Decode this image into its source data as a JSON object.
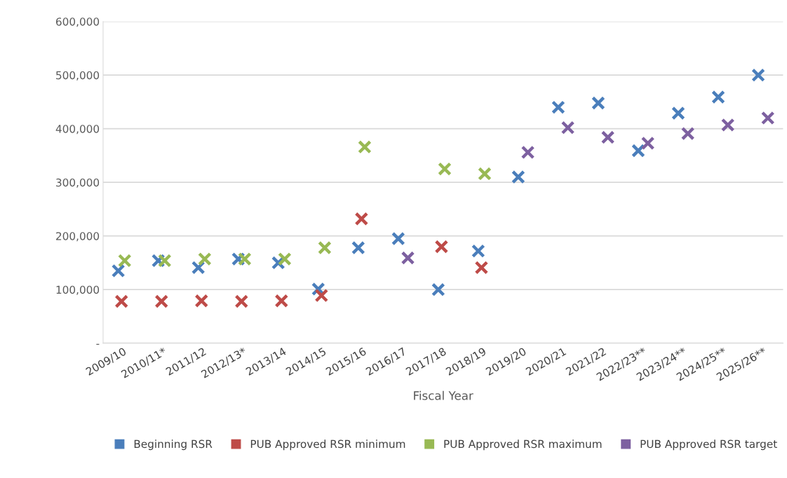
{
  "chart_data": {
    "type": "scatter",
    "xlabel": "Fiscal Year",
    "categories": [
      "2009/10",
      "2010/11*",
      "2011/12",
      "2012/13*",
      "2013/14",
      "2014/15",
      "2015/16",
      "2016/17",
      "2017/18",
      "2018/19",
      "2019/20",
      "2020/21",
      "2021/22",
      "2022/23**",
      "2023/24**",
      "2024/25**",
      "2025/26**"
    ],
    "series": [
      {
        "name": "Beginning RSR",
        "color": "#4a7ebb",
        "values": [
          135000,
          154000,
          141000,
          157000,
          150000,
          101000,
          178000,
          195000,
          100000,
          172000,
          310000,
          440000,
          448000,
          359000,
          429000,
          459000,
          500000
        ]
      },
      {
        "name": "PUB Approved RSR minimum",
        "color": "#be4b48",
        "values": [
          78000,
          78000,
          79000,
          78000,
          79000,
          89000,
          232000,
          null,
          180000,
          141000,
          null,
          null,
          null,
          null,
          null,
          null,
          null
        ]
      },
      {
        "name": "PUB Approved RSR maximum",
        "color": "#98b954",
        "values": [
          154000,
          154000,
          157000,
          157000,
          157000,
          178000,
          366000,
          null,
          325000,
          316000,
          null,
          null,
          null,
          null,
          null,
          null,
          null
        ]
      },
      {
        "name": "PUB Approved RSR target",
        "color": "#7d60a0",
        "values": [
          null,
          null,
          null,
          null,
          null,
          null,
          null,
          159000,
          null,
          null,
          356000,
          402000,
          384000,
          373000,
          391000,
          407000,
          420000
        ]
      }
    ],
    "ylim": [
      0,
      600000
    ],
    "yticks": [
      {
        "value": 0,
        "label": "-"
      },
      {
        "value": 100000,
        "label": "100,000"
      },
      {
        "value": 200000,
        "label": "200,000"
      },
      {
        "value": 300000,
        "label": "300,000"
      },
      {
        "value": 400000,
        "label": "400,000"
      },
      {
        "value": 500000,
        "label": "500,000"
      },
      {
        "value": 600000,
        "label": "600,000"
      }
    ],
    "grid": "y",
    "legend": "bottom",
    "marker": "cross"
  }
}
